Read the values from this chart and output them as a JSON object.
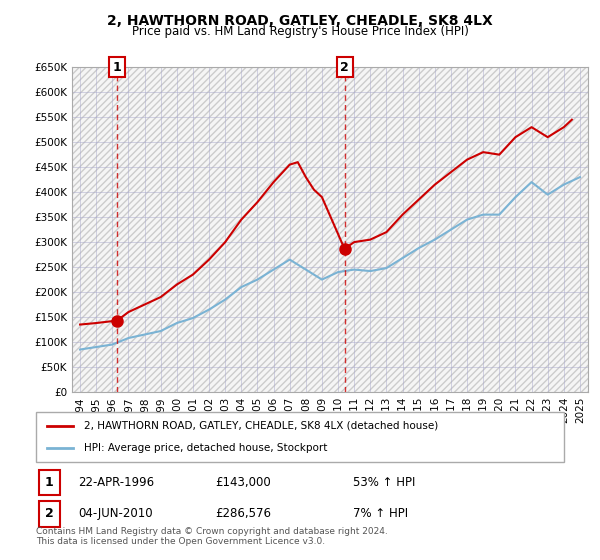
{
  "title": "2, HAWTHORN ROAD, GATLEY, CHEADLE, SK8 4LX",
  "subtitle": "Price paid vs. HM Land Registry's House Price Index (HPI)",
  "ylabel": "",
  "xlabel": "",
  "ylim": [
    0,
    650000
  ],
  "yticks": [
    0,
    50000,
    100000,
    150000,
    200000,
    250000,
    300000,
    350000,
    400000,
    450000,
    500000,
    550000,
    600000,
    650000
  ],
  "ytick_labels": [
    "£0",
    "£50K",
    "£100K",
    "£150K",
    "£200K",
    "£250K",
    "£300K",
    "£350K",
    "£400K",
    "£450K",
    "£500K",
    "£550K",
    "£600K",
    "£650K"
  ],
  "xticks": [
    1994,
    1995,
    1996,
    1997,
    1998,
    1999,
    2000,
    2001,
    2002,
    2003,
    2004,
    2005,
    2006,
    2007,
    2008,
    2009,
    2010,
    2011,
    2012,
    2013,
    2014,
    2015,
    2016,
    2017,
    2018,
    2019,
    2020,
    2021,
    2022,
    2023,
    2024,
    2025
  ],
  "sale1_x": 1996.31,
  "sale1_y": 143000,
  "sale1_label": "1",
  "sale2_x": 2010.42,
  "sale2_y": 286576,
  "sale2_label": "2",
  "red_line_color": "#cc0000",
  "blue_line_color": "#6699cc",
  "hpi_line_color": "#7ab3d4",
  "sale_marker_color": "#cc0000",
  "dashed_line_color": "#cc0000",
  "bg_hatch_color": "#e8e8e8",
  "grid_color": "#aaaacc",
  "legend_label_red": "2, HAWTHORN ROAD, GATLEY, CHEADLE, SK8 4LX (detached house)",
  "legend_label_blue": "HPI: Average price, detached house, Stockport",
  "footer": "Contains HM Land Registry data © Crown copyright and database right 2024.\nThis data is licensed under the Open Government Licence v3.0.",
  "table_row1": [
    "1",
    "22-APR-1996",
    "£143,000",
    "53% ↑ HPI"
  ],
  "table_row2": [
    "2",
    "04-JUN-2010",
    "£286,576",
    "7% ↑ HPI"
  ],
  "hpi_years": [
    1994,
    1995,
    1996,
    1997,
    1998,
    1999,
    2000,
    2001,
    2002,
    2003,
    2004,
    2005,
    2006,
    2007,
    2008,
    2009,
    2010,
    2011,
    2012,
    2013,
    2014,
    2015,
    2016,
    2017,
    2018,
    2019,
    2020,
    2021,
    2022,
    2023,
    2024,
    2025
  ],
  "hpi_values": [
    85000,
    90000,
    95000,
    108000,
    115000,
    122000,
    138000,
    148000,
    165000,
    185000,
    210000,
    225000,
    245000,
    265000,
    245000,
    225000,
    240000,
    245000,
    242000,
    248000,
    268000,
    288000,
    305000,
    325000,
    345000,
    355000,
    355000,
    390000,
    420000,
    395000,
    415000,
    430000
  ],
  "red_years": [
    1994,
    1995,
    1996.3,
    1997,
    1998,
    1999,
    2000,
    2001,
    2002,
    2003,
    2004,
    2005,
    2006,
    2007,
    2007.5,
    2008,
    2008.5,
    2009,
    2010.4,
    2011,
    2012,
    2013,
    2014,
    2015,
    2016,
    2017,
    2018,
    2019,
    2020,
    2021,
    2022,
    2023,
    2024,
    2024.5
  ],
  "red_values": [
    135000,
    138000,
    143000,
    160000,
    175000,
    190000,
    215000,
    235000,
    265000,
    300000,
    345000,
    380000,
    420000,
    455000,
    460000,
    430000,
    405000,
    390000,
    286576,
    300000,
    305000,
    320000,
    355000,
    385000,
    415000,
    440000,
    465000,
    480000,
    475000,
    510000,
    530000,
    510000,
    530000,
    545000
  ]
}
